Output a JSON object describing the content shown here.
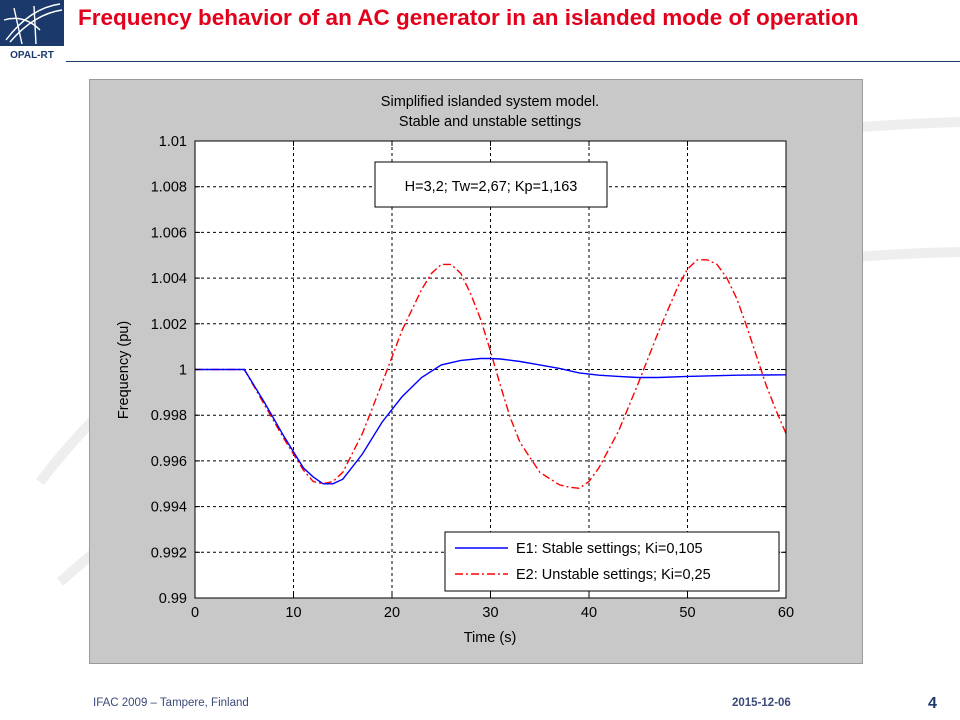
{
  "slide": {
    "title": "Frequency behavior of an AC generator in an islanded mode of operation",
    "logo_text": "OPAL-RT",
    "footer_left": "IFAC 2009 – Tampere, Finland",
    "footer_date": "2015-12-06",
    "page_number": "4"
  },
  "colors": {
    "title": "#e3001b",
    "brand": "#1b3a6b",
    "stable": "#0000ff",
    "unstable": "#ff0000"
  },
  "chart_data": {
    "type": "line",
    "title": [
      "Simplified islanded system model.",
      "Stable and unstable settings"
    ],
    "xlabel": "Time (s)",
    "ylabel": "Frequency (pu)",
    "xlim": [
      0,
      60
    ],
    "ylim": [
      0.99,
      1.01
    ],
    "xticks": [
      0,
      10,
      20,
      30,
      40,
      50,
      60
    ],
    "xtick_labels": [
      "0",
      "10",
      "20",
      "30",
      "40",
      "50",
      "60"
    ],
    "yticks": [
      0.99,
      0.992,
      0.994,
      0.996,
      0.998,
      1.0,
      1.002,
      1.004,
      1.006,
      1.008,
      1.01
    ],
    "ytick_labels": [
      "0.99",
      "0.992",
      "0.994",
      "0.996",
      "0.998",
      "1",
      "1.002",
      "1.004",
      "1.006",
      "1.008",
      "1.01"
    ],
    "grid": true,
    "annotation": "H=3,2; Tw=2,67; Kp=1,163",
    "legend_position": "bottom-right",
    "series": [
      {
        "name": "E1: Stable settings; Ki=0,105",
        "color": "#0000ff",
        "style": "solid",
        "x": [
          0,
          5,
          7,
          9,
          11,
          12,
          13,
          14,
          15,
          17,
          19,
          21,
          23,
          25,
          27,
          29,
          30,
          31,
          33,
          35,
          37,
          39,
          41,
          43,
          45,
          47,
          50,
          55,
          60
        ],
        "y": [
          1.0,
          1.0,
          0.9986,
          0.9971,
          0.9957,
          0.9953,
          0.995,
          0.995,
          0.9952,
          0.9963,
          0.9977,
          0.9988,
          0.99965,
          1.0002,
          1.0004,
          1.00048,
          1.00048,
          1.00046,
          1.00035,
          1.0002,
          1.00005,
          0.99985,
          0.99975,
          0.9997,
          0.99965,
          0.99965,
          0.9997,
          0.99975,
          0.99977
        ]
      },
      {
        "name": "E2: Unstable settings; Ki=0,25",
        "color": "#ff0000",
        "style": "dash-dot",
        "x": [
          0,
          5,
          7,
          9,
          11,
          12,
          13,
          14,
          15,
          17,
          19,
          21,
          23,
          24,
          25,
          26,
          27,
          28,
          29,
          30,
          31,
          32,
          33,
          35,
          37,
          38,
          39,
          40,
          41,
          43,
          45,
          47,
          49,
          50,
          51,
          52,
          53,
          54,
          55,
          56,
          57,
          58,
          59,
          60
        ],
        "y": [
          1.0,
          1.0,
          0.9985,
          0.997,
          0.9956,
          0.9951,
          0.995,
          0.9951,
          0.9955,
          0.9972,
          0.9994,
          1.0017,
          1.0035,
          1.0042,
          1.0046,
          1.0046,
          1.0042,
          1.0033,
          1.0022,
          1.0008,
          0.9993,
          0.9979,
          0.9968,
          0.9955,
          0.99495,
          0.99485,
          0.9948,
          0.9951,
          0.9957,
          0.9973,
          0.9994,
          1.0016,
          1.0036,
          1.0044,
          1.0048,
          1.0048,
          1.0046,
          1.004,
          1.0031,
          1.0019,
          1.0006,
          0.9993,
          0.9982,
          0.9972
        ]
      }
    ]
  }
}
